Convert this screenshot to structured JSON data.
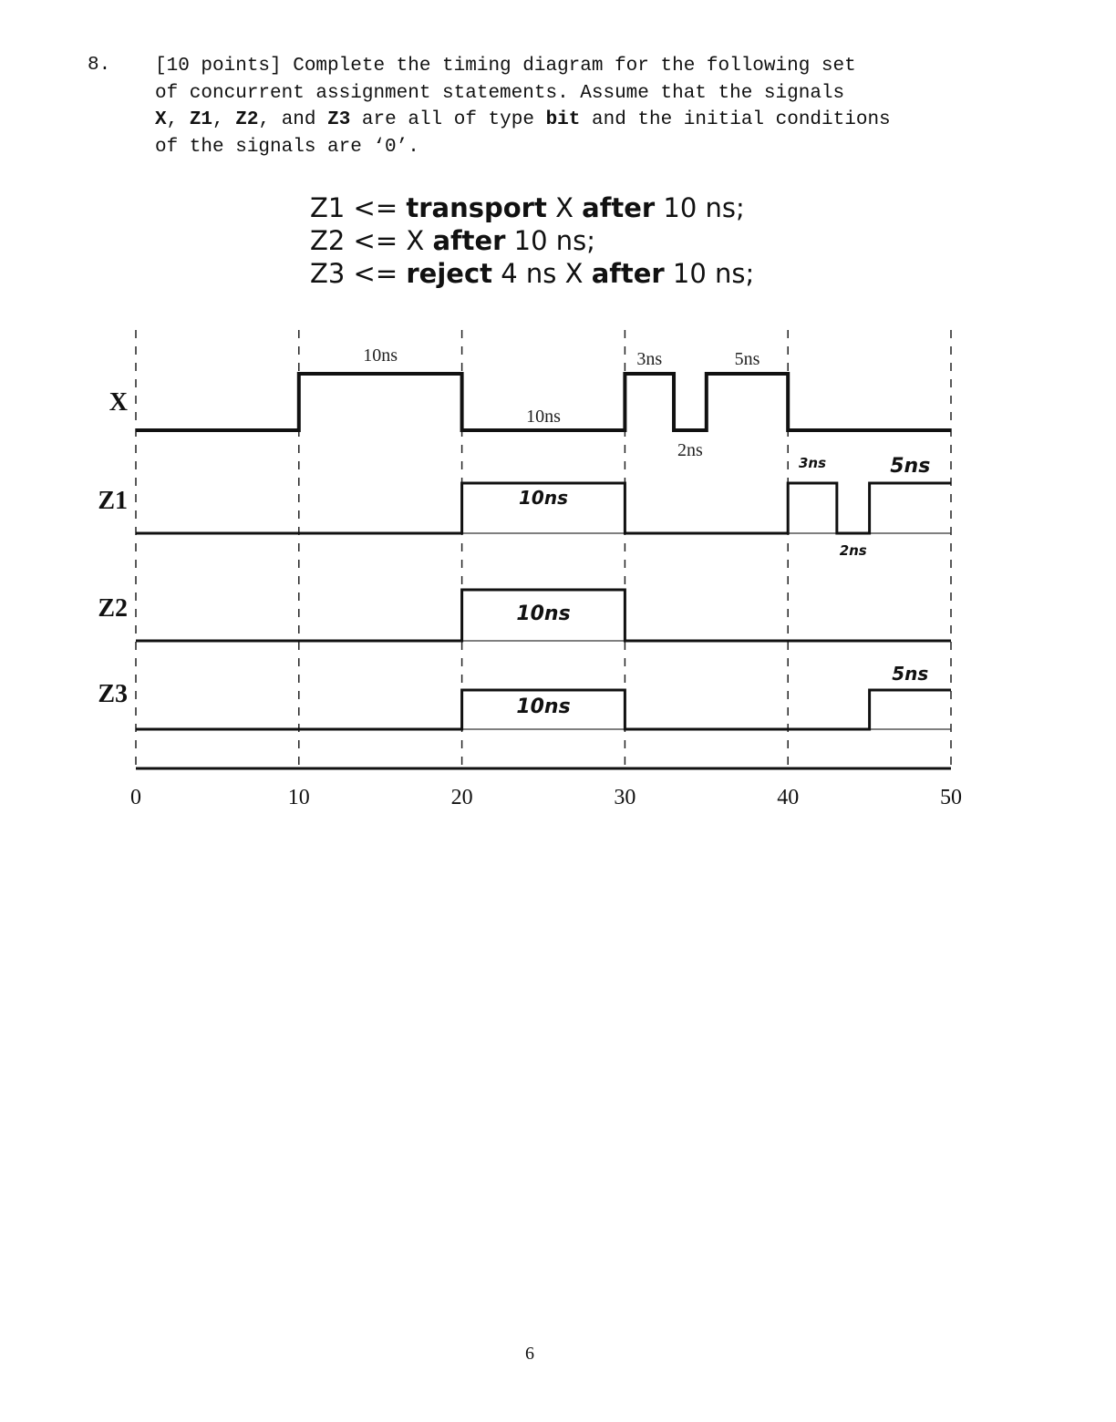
{
  "question": {
    "number": "8.",
    "line1": "[10 points] Complete the timing diagram for the following set",
    "line2": "of concurrent assignment statements. Assume that the signals",
    "line3_sig_x": "X",
    "line3_sep1": ", ",
    "line3_sig_z1": "Z1",
    "line3_sep2": ", ",
    "line3_sig_z2": "Z2",
    "line3_sep3": ", and ",
    "line3_sig_z3": "Z3",
    "line3_mid": " are all of type ",
    "line3_type": "bit",
    "line3_end": " and the initial conditions",
    "line4": "of the signals are ‘0’."
  },
  "statements": [
    {
      "lhs": "Z1 <= ",
      "kw1": "transport",
      "mid": " X ",
      "kw2": "after",
      "rest": " 10 ns;"
    },
    {
      "lhs": "Z2 <= X ",
      "kw1": "after",
      "rest": " 10 ns;"
    },
    {
      "lhs": "Z3 <= ",
      "kw1": "reject",
      "mid": " 4 ns X ",
      "kw2": "after",
      "rest": " 10 ns;"
    }
  ],
  "timing": {
    "time_ticks": [
      "0",
      "10",
      "20",
      "30",
      "40",
      "50"
    ],
    "signals": [
      {
        "name": "X",
        "transitions": [
          [
            0,
            0
          ],
          [
            10,
            1
          ],
          [
            20,
            0
          ],
          [
            30,
            1
          ],
          [
            33,
            0
          ],
          [
            35,
            1
          ],
          [
            40,
            0
          ],
          [
            50,
            0
          ]
        ]
      },
      {
        "name": "Z1",
        "transitions": [
          [
            0,
            0
          ],
          [
            20,
            1
          ],
          [
            30,
            0
          ],
          [
            40,
            1
          ],
          [
            43,
            0
          ],
          [
            45,
            1
          ],
          [
            50,
            1
          ]
        ]
      },
      {
        "name": "Z2",
        "transitions": [
          [
            0,
            0
          ],
          [
            20,
            1
          ],
          [
            30,
            0
          ],
          [
            50,
            0
          ]
        ]
      },
      {
        "name": "Z3",
        "transitions": [
          [
            0,
            0
          ],
          [
            20,
            1
          ],
          [
            30,
            0
          ],
          [
            45,
            1
          ],
          [
            50,
            1
          ]
        ]
      }
    ],
    "x_labels": [
      {
        "text": "10ns",
        "t": 15
      },
      {
        "text": "10ns",
        "t": 25
      },
      {
        "text": "3ns",
        "t": 31.5
      },
      {
        "text": "2ns",
        "t": 34
      },
      {
        "text": "5ns",
        "t": 37.5
      }
    ],
    "handwritten_labels": [
      {
        "signal": "Z1",
        "text": "10ns",
        "t": 25
      },
      {
        "signal": "Z1",
        "text": "3ns",
        "t": 41.5
      },
      {
        "signal": "Z1",
        "text": "2ns",
        "t": 44
      },
      {
        "signal": "Z1",
        "text": "5ns",
        "t": 47.5
      },
      {
        "signal": "Z2",
        "text": "10ns",
        "t": 25
      },
      {
        "signal": "Z3",
        "text": "10ns",
        "t": 25
      },
      {
        "signal": "Z3",
        "text": "5ns",
        "t": 47.5
      }
    ]
  },
  "page_number": "6"
}
